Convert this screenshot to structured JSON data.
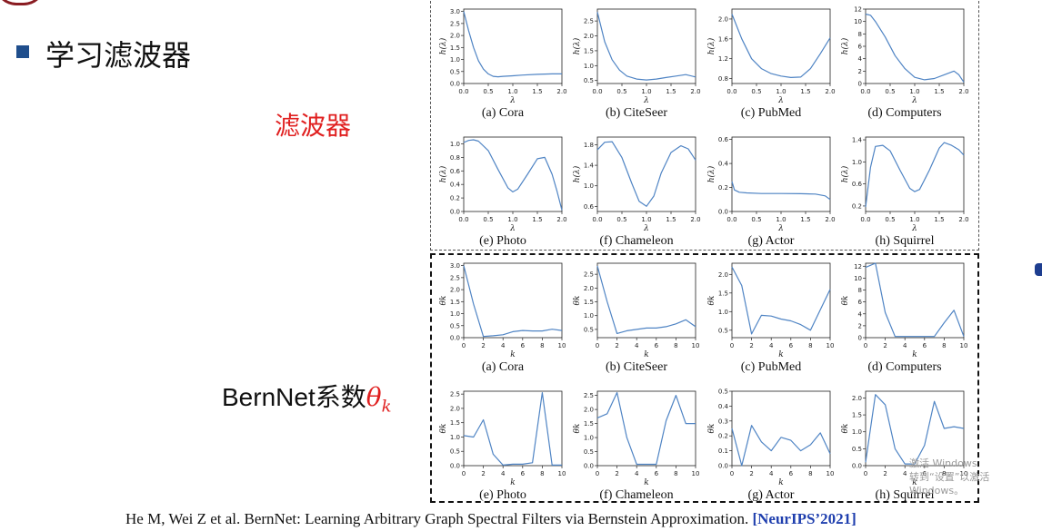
{
  "slide": {
    "title": "学习滤波器",
    "filter_label": "滤波器",
    "bernnet_label_prefix": "BernNet系数",
    "bernnet_theta": "θ",
    "bernnet_sub": "k",
    "citation_text": "He M, Wei Z et al. BernNet: Learning Arbitrary Graph Spectral Filters via Bernstein Approximation. ",
    "citation_venue": "[NeurIPS’2021]",
    "watermark_line1": "激活 Windows",
    "watermark_line2": "转到“设置”以激活 Windows。"
  },
  "colors": {
    "line": "#4f84c4",
    "title_bullet": "#1f4e8c",
    "accent_red": "#e02020",
    "venue_blue": "#1f3fae"
  },
  "chart_data": [
    {
      "type": "line",
      "group": "filter",
      "caption": "(a) Cora",
      "ylabel": "h(λ)",
      "xlabel": "λ",
      "xlim": [
        0,
        2
      ],
      "ylim": [
        0,
        3.1
      ],
      "xticks": [
        "0.0",
        "0.5",
        "1.0",
        "1.5",
        "2.0"
      ],
      "yticks": [
        "0.0",
        "0.5",
        "1.0",
        "1.5",
        "2.0",
        "2.5",
        "3.0"
      ],
      "x": [
        0,
        0.1,
        0.2,
        0.3,
        0.4,
        0.5,
        0.6,
        0.7,
        0.8,
        1.0,
        1.2,
        1.5,
        1.8,
        2.0
      ],
      "y": [
        3.0,
        2.2,
        1.5,
        0.95,
        0.6,
        0.4,
        0.3,
        0.28,
        0.3,
        0.32,
        0.35,
        0.38,
        0.4,
        0.4
      ]
    },
    {
      "type": "line",
      "group": "filter",
      "caption": "(b) CiteSeer",
      "ylabel": "h(λ)",
      "xlabel": "λ",
      "xlim": [
        0,
        2
      ],
      "ylim": [
        0.4,
        2.9
      ],
      "xticks": [
        "0.0",
        "0.5",
        "1.0",
        "1.5",
        "2.0"
      ],
      "yticks": [
        "0.5",
        "1.0",
        "1.5",
        "2.0",
        "2.5"
      ],
      "x": [
        0,
        0.15,
        0.3,
        0.45,
        0.6,
        0.8,
        1.0,
        1.2,
        1.4,
        1.6,
        1.8,
        2.0
      ],
      "y": [
        2.8,
        1.8,
        1.2,
        0.85,
        0.65,
        0.55,
        0.52,
        0.55,
        0.6,
        0.65,
        0.7,
        0.62
      ]
    },
    {
      "type": "line",
      "group": "filter",
      "caption": "(c) PubMed",
      "ylabel": "h(λ)",
      "xlabel": "λ",
      "xlim": [
        0,
        2
      ],
      "ylim": [
        0.7,
        2.2
      ],
      "xticks": [
        "0.0",
        "0.5",
        "1.0",
        "1.5",
        "2.0"
      ],
      "yticks": [
        "0.8",
        "1.2",
        "1.6",
        "2.0"
      ],
      "x": [
        0,
        0.2,
        0.4,
        0.6,
        0.8,
        1.0,
        1.2,
        1.4,
        1.6,
        1.8,
        2.0
      ],
      "y": [
        2.1,
        1.6,
        1.2,
        1.0,
        0.9,
        0.85,
        0.82,
        0.83,
        1.0,
        1.3,
        1.62
      ]
    },
    {
      "type": "line",
      "group": "filter",
      "caption": "(d) Computers",
      "ylabel": "h(λ)",
      "xlabel": "λ",
      "xlim": [
        0,
        2
      ],
      "ylim": [
        0,
        12
      ],
      "xticks": [
        "0.0",
        "0.5",
        "1.0",
        "1.5",
        "2.0"
      ],
      "yticks": [
        "0",
        "2",
        "4",
        "6",
        "8",
        "10",
        "12"
      ],
      "x": [
        0,
        0.1,
        0.2,
        0.4,
        0.6,
        0.8,
        1.0,
        1.2,
        1.4,
        1.6,
        1.8,
        1.9,
        2.0
      ],
      "y": [
        11.2,
        11.0,
        10.0,
        7.5,
        4.5,
        2.4,
        1.0,
        0.6,
        0.8,
        1.4,
        2.0,
        1.4,
        0.2
      ]
    },
    {
      "type": "line",
      "group": "filter",
      "caption": "(e) Photo",
      "ylabel": "h(λ)",
      "xlabel": "λ",
      "xlim": [
        0,
        2
      ],
      "ylim": [
        0,
        1.1
      ],
      "xticks": [
        "0.0",
        "0.5",
        "1.0",
        "1.5",
        "2.0"
      ],
      "yticks": [
        "0.0",
        "0.2",
        "0.4",
        "0.6",
        "0.8",
        "1.0"
      ],
      "x": [
        0,
        0.1,
        0.2,
        0.3,
        0.5,
        0.7,
        0.9,
        1.0,
        1.1,
        1.3,
        1.5,
        1.65,
        1.8,
        1.9,
        2.0
      ],
      "y": [
        1.02,
        1.05,
        1.06,
        1.04,
        0.9,
        0.62,
        0.35,
        0.29,
        0.33,
        0.55,
        0.78,
        0.8,
        0.55,
        0.3,
        0.02
      ]
    },
    {
      "type": "line",
      "group": "filter",
      "caption": "(f) Chameleon",
      "ylabel": "h(λ)",
      "xlabel": "λ",
      "xlim": [
        0,
        2
      ],
      "ylim": [
        0.5,
        1.95
      ],
      "xticks": [
        "0.0",
        "0.5",
        "1.0",
        "1.5",
        "2.0"
      ],
      "yticks": [
        "0.6",
        "1.0",
        "1.4",
        "1.8"
      ],
      "x": [
        0,
        0.15,
        0.3,
        0.5,
        0.7,
        0.85,
        1.0,
        1.15,
        1.3,
        1.5,
        1.7,
        1.85,
        2.0
      ],
      "y": [
        1.7,
        1.85,
        1.86,
        1.55,
        1.05,
        0.7,
        0.6,
        0.8,
        1.25,
        1.65,
        1.78,
        1.72,
        1.5
      ]
    },
    {
      "type": "line",
      "group": "filter",
      "caption": "(g) Actor",
      "ylabel": "h(λ)",
      "xlabel": "λ",
      "xlim": [
        0,
        2
      ],
      "ylim": [
        0,
        0.62
      ],
      "xticks": [
        "0.0",
        "0.5",
        "1.0",
        "1.5",
        "2.0"
      ],
      "yticks": [
        "0.0",
        "0.2",
        "0.4",
        "0.6"
      ],
      "x": [
        0,
        0.05,
        0.15,
        0.3,
        0.6,
        1.0,
        1.4,
        1.7,
        1.9,
        2.0
      ],
      "y": [
        0.25,
        0.18,
        0.16,
        0.155,
        0.15,
        0.15,
        0.148,
        0.145,
        0.13,
        0.1
      ]
    },
    {
      "type": "line",
      "group": "filter",
      "caption": "(h) Squirrel",
      "ylabel": "h(λ)",
      "xlabel": "λ",
      "xlim": [
        0,
        2
      ],
      "ylim": [
        0.1,
        1.45
      ],
      "xticks": [
        "0.0",
        "0.5",
        "1.0",
        "1.5",
        "2.0"
      ],
      "yticks": [
        "0.2",
        "0.6",
        "1.0",
        "1.4"
      ],
      "x": [
        0,
        0.1,
        0.2,
        0.35,
        0.5,
        0.7,
        0.9,
        1.0,
        1.1,
        1.3,
        1.5,
        1.6,
        1.75,
        1.9,
        2.0
      ],
      "y": [
        0.18,
        0.9,
        1.28,
        1.3,
        1.2,
        0.85,
        0.52,
        0.46,
        0.5,
        0.85,
        1.25,
        1.35,
        1.3,
        1.22,
        1.12
      ]
    },
    {
      "type": "line",
      "group": "coef",
      "caption": "(a) Cora",
      "ylabel": "θk",
      "xlabel": "k",
      "xlim": [
        0,
        10
      ],
      "ylim": [
        0,
        3.1
      ],
      "xticks": [
        "0",
        "2",
        "4",
        "6",
        "8",
        "10"
      ],
      "yticks": [
        "0.0",
        "0.5",
        "1.0",
        "1.5",
        "2.0",
        "2.5",
        "3.0"
      ],
      "x": [
        0,
        1,
        2,
        3,
        4,
        5,
        6,
        7,
        8,
        9,
        10
      ],
      "y": [
        3.0,
        1.4,
        0.05,
        0.08,
        0.12,
        0.25,
        0.3,
        0.28,
        0.28,
        0.35,
        0.3
      ]
    },
    {
      "type": "line",
      "group": "coef",
      "caption": "(b) CiteSeer",
      "ylabel": "θk",
      "xlabel": "k",
      "xlim": [
        0,
        10
      ],
      "ylim": [
        0.2,
        2.9
      ],
      "xticks": [
        "0",
        "2",
        "4",
        "6",
        "8",
        "10"
      ],
      "yticks": [
        "0.5",
        "1.0",
        "1.5",
        "2.0",
        "2.5"
      ],
      "x": [
        0,
        1,
        2,
        3,
        4,
        5,
        6,
        7,
        8,
        9,
        10
      ],
      "y": [
        2.8,
        1.5,
        0.35,
        0.45,
        0.5,
        0.55,
        0.55,
        0.6,
        0.7,
        0.85,
        0.6
      ]
    },
    {
      "type": "line",
      "group": "coef",
      "caption": "(c) PubMed",
      "ylabel": "θk",
      "xlabel": "k",
      "xlim": [
        0,
        10
      ],
      "ylim": [
        0.3,
        2.3
      ],
      "xticks": [
        "0",
        "2",
        "4",
        "6",
        "8",
        "10"
      ],
      "yticks": [
        "0.5",
        "1.0",
        "1.5",
        "2.0"
      ],
      "x": [
        0,
        1,
        2,
        3,
        4,
        5,
        6,
        7,
        8,
        9,
        10
      ],
      "y": [
        2.2,
        1.7,
        0.4,
        0.9,
        0.88,
        0.8,
        0.75,
        0.65,
        0.5,
        1.05,
        1.6
      ]
    },
    {
      "type": "line",
      "group": "coef",
      "caption": "(d) Computers",
      "ylabel": "θk",
      "xlabel": "k",
      "xlim": [
        0,
        10
      ],
      "ylim": [
        0,
        12.5
      ],
      "xticks": [
        "0",
        "2",
        "4",
        "6",
        "8",
        "10"
      ],
      "yticks": [
        "0",
        "2",
        "4",
        "6",
        "8",
        "10",
        "12"
      ],
      "x": [
        0,
        1,
        2,
        3,
        4,
        5,
        6,
        7,
        8,
        9,
        10
      ],
      "y": [
        11.8,
        12.5,
        4.2,
        0.2,
        0.2,
        0.2,
        0.2,
        0.2,
        2.5,
        4.6,
        0.2
      ]
    },
    {
      "type": "line",
      "group": "coef",
      "caption": "(e) Photo",
      "ylabel": "θk",
      "xlabel": "k",
      "xlim": [
        0,
        10
      ],
      "ylim": [
        0,
        2.6
      ],
      "xticks": [
        "0",
        "2",
        "4",
        "6",
        "8",
        "10"
      ],
      "yticks": [
        "0.0",
        "0.5",
        "1.0",
        "1.5",
        "2.0",
        "2.5"
      ],
      "x": [
        0,
        1,
        2,
        3,
        4,
        5,
        6,
        7,
        8,
        9,
        10
      ],
      "y": [
        1.05,
        1.0,
        1.6,
        0.4,
        0.02,
        0.05,
        0.05,
        0.1,
        2.55,
        0.02,
        0.02
      ]
    },
    {
      "type": "line",
      "group": "coef",
      "caption": "(f) Chameleon",
      "ylabel": "θk",
      "xlabel": "k",
      "xlim": [
        0,
        10
      ],
      "ylim": [
        0,
        2.65
      ],
      "xticks": [
        "0",
        "2",
        "4",
        "6",
        "8",
        "10"
      ],
      "yticks": [
        "0.0",
        "0.5",
        "1.0",
        "1.5",
        "2.0",
        "2.5"
      ],
      "x": [
        0,
        1,
        2,
        3,
        4,
        5,
        6,
        7,
        8,
        9,
        10
      ],
      "y": [
        1.7,
        1.85,
        2.6,
        1.0,
        0.05,
        0.05,
        0.05,
        1.6,
        2.5,
        1.5,
        1.5
      ]
    },
    {
      "type": "line",
      "group": "coef",
      "caption": "(g) Actor",
      "ylabel": "θk",
      "xlabel": "k",
      "xlim": [
        0,
        10
      ],
      "ylim": [
        0,
        0.5
      ],
      "xticks": [
        "0",
        "2",
        "4",
        "6",
        "8",
        "10"
      ],
      "yticks": [
        "0.0",
        "0.1",
        "0.2",
        "0.3",
        "0.4",
        "0.5"
      ],
      "x": [
        0,
        1,
        2,
        3,
        4,
        5,
        6,
        7,
        8,
        9,
        10
      ],
      "y": [
        0.25,
        0.0,
        0.27,
        0.16,
        0.1,
        0.19,
        0.17,
        0.1,
        0.14,
        0.22,
        0.08
      ]
    },
    {
      "type": "line",
      "group": "coef",
      "caption": "(h) Squirrel",
      "ylabel": "θk",
      "xlabel": "k",
      "xlim": [
        0,
        10
      ],
      "ylim": [
        0,
        2.2
      ],
      "xticks": [
        "0",
        "2",
        "4",
        "6",
        "8",
        "10"
      ],
      "yticks": [
        "0.0",
        "0.5",
        "1.0",
        "1.5",
        "2.0"
      ],
      "x": [
        0,
        1,
        2,
        3,
        4,
        5,
        6,
        7,
        8,
        9,
        10
      ],
      "y": [
        0.1,
        2.1,
        1.8,
        0.5,
        0.05,
        0.05,
        0.6,
        1.9,
        1.1,
        1.15,
        1.1
      ]
    }
  ]
}
